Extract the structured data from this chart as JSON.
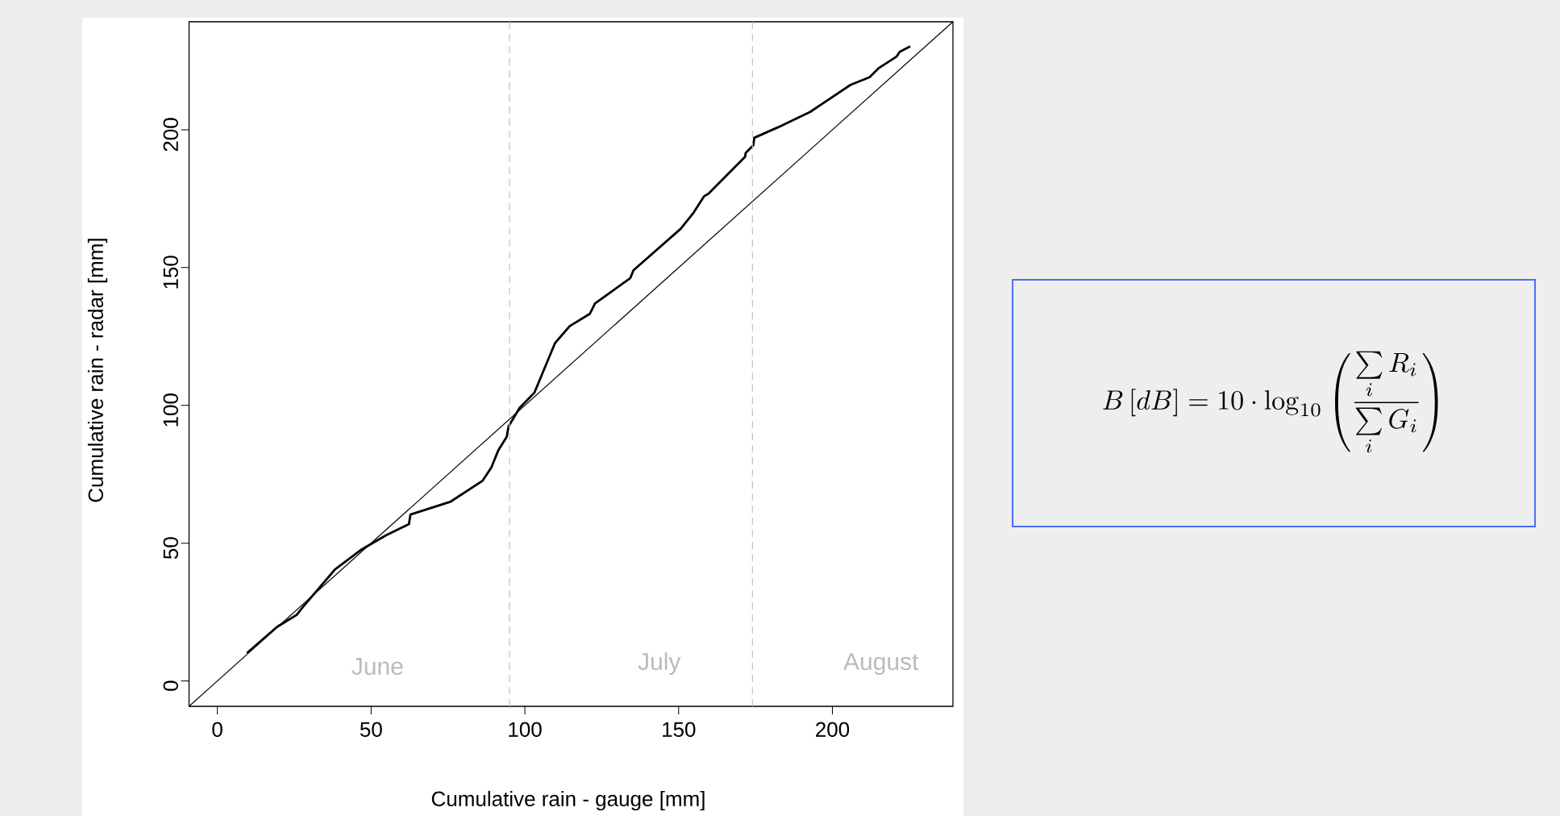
{
  "chart_data": {
    "type": "line",
    "xlabel": "Cumulative rain - gauge [mm]",
    "ylabel": "Cumulative rain - radar [mm]",
    "xlim": [
      -9.2,
      239.2
    ],
    "ylim": [
      -9.2,
      239.2
    ],
    "xticks": [
      0,
      50,
      100,
      150,
      200
    ],
    "yticks": [
      0,
      50,
      100,
      150,
      200
    ],
    "grid": false,
    "series": [
      {
        "color": "#000000",
        "x": [
          9.6,
          19.4,
          25.8,
          27.8,
          38.2,
          47.0,
          54.9,
          62.3,
          62.8,
          75.9,
          86.2,
          89.1,
          91.4,
          94.1,
          94.7,
          98.3,
          103.1,
          109.8,
          114.6,
          121.1,
          122.8,
          134.3,
          135.3,
          150.7,
          154.9,
          158.3,
          159.7,
          171.6,
          171.8,
          174.3,
          174.6,
          182.3,
          192.8,
          205.9,
          212.1,
          215.2,
          220.9,
          221.9,
          225.3
        ],
        "values": [
          10.1,
          19.6,
          24.0,
          26.8,
          40.4,
          47.8,
          52.9,
          56.9,
          60.4,
          65.1,
          72.6,
          77.5,
          83.8,
          88.6,
          92.4,
          99.1,
          104.6,
          122.6,
          128.8,
          133.2,
          137.0,
          146.2,
          149.0,
          164.1,
          170.0,
          175.9,
          176.8,
          190.2,
          191.6,
          194.4,
          197.1,
          200.9,
          206.5,
          216.3,
          219.1,
          222.5,
          226.6,
          228.3,
          230.3
        ]
      },
      {
        "color": "#000000",
        "x": [
          -9.2,
          239.2
        ],
        "values": [
          -9.2,
          239.2
        ]
      }
    ],
    "ref_lines": [
      {
        "axis": "x",
        "value": 95,
        "color": "#c0c0c0",
        "line_style": "dashed"
      },
      {
        "axis": "x",
        "value": 174,
        "color": "#c0c0c0",
        "line_style": "dashed"
      }
    ],
    "annotations": [
      "June",
      "July",
      "August",
      "B\\left[dB\\right]=10\\cdot\\log_{10}\\left(\\frac{\\sum\\limits_{i} R_{i}}{\\sum\\limits_{i} G_{i}}\\right)"
    ]
  }
}
